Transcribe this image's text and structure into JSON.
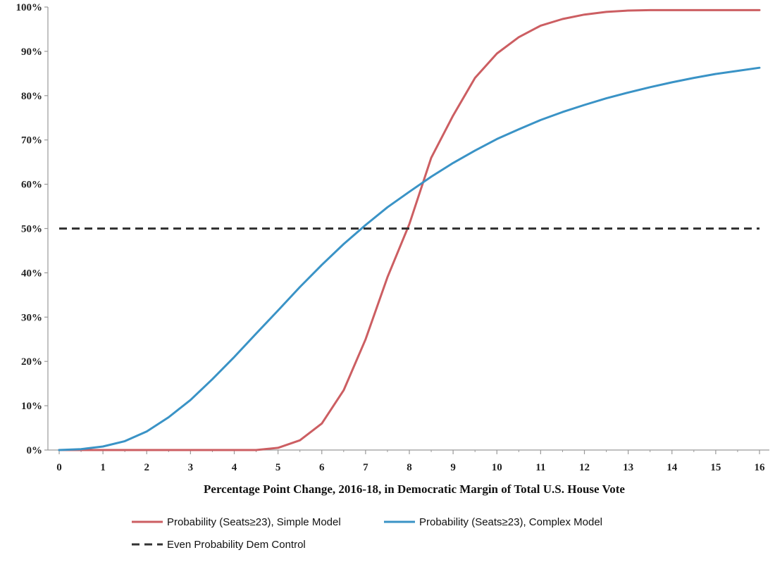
{
  "chart_data": {
    "type": "line",
    "title": "",
    "xlabel": "Percentage Point Change, 2016-18, in Democratic Margin of Total U.S. House Vote",
    "ylabel": "",
    "xlim": [
      0,
      16
    ],
    "ylim": [
      0,
      100
    ],
    "x_ticks": [
      "0",
      "1",
      "2",
      "3",
      "4",
      "5",
      "6",
      "7",
      "8",
      "9",
      "10",
      "11",
      "12",
      "13",
      "14",
      "15",
      "16"
    ],
    "y_ticks": [
      "0%",
      "10%",
      "20%",
      "30%",
      "40%",
      "50%",
      "60%",
      "70%",
      "80%",
      "90%",
      "100%"
    ],
    "x": [
      0,
      0.5,
      1,
      1.5,
      2,
      2.5,
      3,
      3.5,
      4,
      4.5,
      5,
      5.5,
      6,
      6.5,
      7,
      7.5,
      8,
      8.5,
      9,
      9.5,
      10,
      10.5,
      11,
      11.5,
      12,
      12.5,
      13,
      13.5,
      14,
      14.5,
      15,
      15.5,
      16
    ],
    "series": [
      {
        "name": "Probability (Seats≥23), Simple Model",
        "color": "#cc5e62",
        "dash": "solid",
        "values": [
          0,
          0,
          0,
          0,
          0,
          0,
          0,
          0,
          0,
          0,
          0.5,
          2.2,
          6,
          13.5,
          25,
          39,
          51,
          66,
          75.5,
          84,
          89.5,
          93.2,
          95.8,
          97.3,
          98.3,
          98.9,
          99.2,
          99.3,
          99.3,
          99.3,
          99.3,
          99.3,
          99.3
        ]
      },
      {
        "name": "Probability (Seats≥23), Complex Model",
        "color": "#3a93c6",
        "dash": "solid",
        "values": [
          0,
          0.2,
          0.8,
          2,
          4.2,
          7.4,
          11.3,
          16,
          21,
          26.3,
          31.5,
          36.8,
          41.8,
          46.5,
          50.8,
          54.8,
          58.3,
          61.7,
          64.8,
          67.6,
          70.2,
          72.4,
          74.5,
          76.3,
          77.9,
          79.4,
          80.7,
          81.9,
          83,
          84,
          84.9,
          85.6,
          86.3
        ]
      },
      {
        "name": "Even Probability Dem Control",
        "color": "#333333",
        "dash": "dashed",
        "values": [
          50,
          50,
          50,
          50,
          50,
          50,
          50,
          50,
          50,
          50,
          50,
          50,
          50,
          50,
          50,
          50,
          50,
          50,
          50,
          50,
          50,
          50,
          50,
          50,
          50,
          50,
          50,
          50,
          50,
          50,
          50,
          50,
          50
        ]
      }
    ],
    "grid": false,
    "legend_position": "bottom"
  }
}
